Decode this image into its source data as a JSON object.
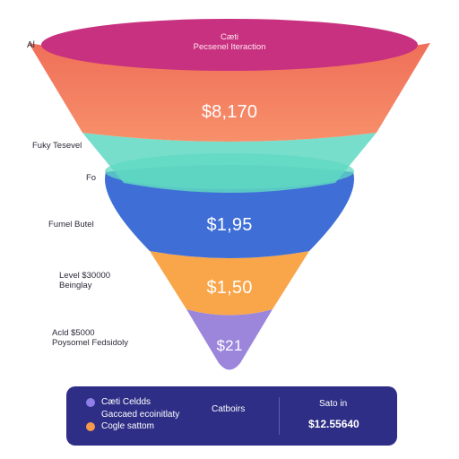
{
  "colors": {
    "top_band": "#c8317f",
    "band1_top": "#ef6f59",
    "band1_bottom": "#f7906a",
    "band2": "#5fd8c2",
    "band3": "#3f6fd6",
    "band4": "#f9a64a",
    "band5": "#9b86dc",
    "panel": "#2e2e86",
    "dot_purple": "#8f7ee8",
    "dot_orange": "#f59a4b"
  },
  "funnel": {
    "top_text_line1": "Cæti",
    "top_text_line2": "Pecsenel Iteraction",
    "stage_values": [
      "$8,170",
      "$1,95",
      "$1,50",
      "$21"
    ]
  },
  "side_labels": [
    {
      "lines": [
        "Al"
      ]
    },
    {
      "lines": [
        "Fuky Tesevel"
      ]
    },
    {
      "lines": [
        "Fo"
      ]
    },
    {
      "lines": [
        "Fumel Butel"
      ]
    },
    {
      "lines": [
        "Level $30000",
        "Beinglay"
      ]
    },
    {
      "lines": [
        "Acld $5000",
        "Poysomel Fedsidoly"
      ]
    }
  ],
  "legend": {
    "items": [
      {
        "label": "Cæti Celdds",
        "color_key": "dot_purple"
      },
      {
        "label": "Gaccaed ecoinitlaty",
        "color_key": ""
      },
      {
        "label": "Cogle sattom",
        "color_key": "dot_orange"
      }
    ],
    "center_label": "Catboirs",
    "right_title": "Sato in",
    "right_value": "$12.55640"
  }
}
